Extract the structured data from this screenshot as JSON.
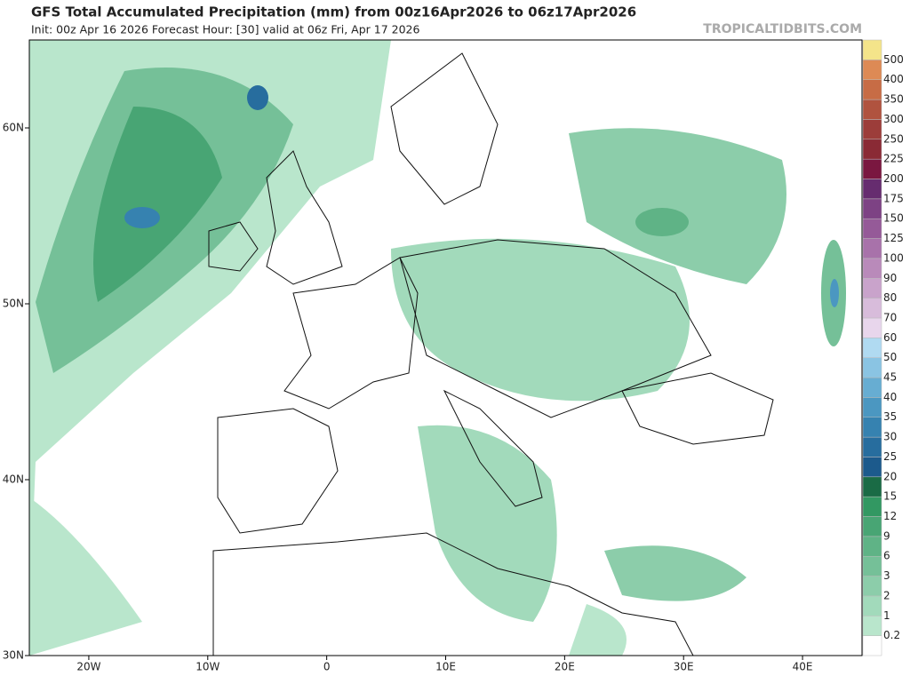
{
  "chart_data": {
    "type": "map",
    "title": "GFS Total Accumulated Precipitation (mm) from 00z16Apr2026 to 06z17Apr2026",
    "subtitle": "Init: 00z Apr 16 2026   Forecast Hour: [30]   valid at 06z Fri, Apr 17 2026",
    "source": "TROPICALTIDBITS.COM",
    "xlim": [
      -25,
      45
    ],
    "ylim": [
      30,
      65
    ],
    "xticks": [
      {
        "value": -20,
        "label": "20W"
      },
      {
        "value": -10,
        "label": "10W"
      },
      {
        "value": 0,
        "label": "0"
      },
      {
        "value": 10,
        "label": "10E"
      },
      {
        "value": 20,
        "label": "20E"
      },
      {
        "value": 30,
        "label": "30E"
      },
      {
        "value": 40,
        "label": "40E"
      }
    ],
    "yticks": [
      {
        "value": 30,
        "label": "30N"
      },
      {
        "value": 40,
        "label": "40N"
      },
      {
        "value": 50,
        "label": "50N"
      },
      {
        "value": 60,
        "label": "60N"
      }
    ],
    "levels": [
      0.2,
      1,
      2,
      3,
      6,
      9,
      12,
      15,
      20,
      25,
      30,
      35,
      40,
      45,
      50,
      60,
      70,
      80,
      90,
      100,
      125,
      150,
      175,
      200,
      225,
      250,
      300,
      350,
      400,
      500
    ],
    "colors": [
      "#ffffff",
      "#b9e6cc",
      "#a2dabb",
      "#8ccdaa",
      "#75c098",
      "#5fb386",
      "#48a574",
      "#329862",
      "#1a6b45",
      "#1c5a8c",
      "#276d9e",
      "#3682b0",
      "#4b97c1",
      "#67add2",
      "#8ac4e3",
      "#b0daf1",
      "#e8d6ec",
      "#d8bcdb",
      "#c9a3cb",
      "#b98aba",
      "#a872aa",
      "#955a98",
      "#7d4284",
      "#662c6f",
      "#7a1740",
      "#8a2a35",
      "#9c3d3a",
      "#b0533f",
      "#c76c45",
      "#dd8a55",
      "#f4e48a"
    ]
  }
}
